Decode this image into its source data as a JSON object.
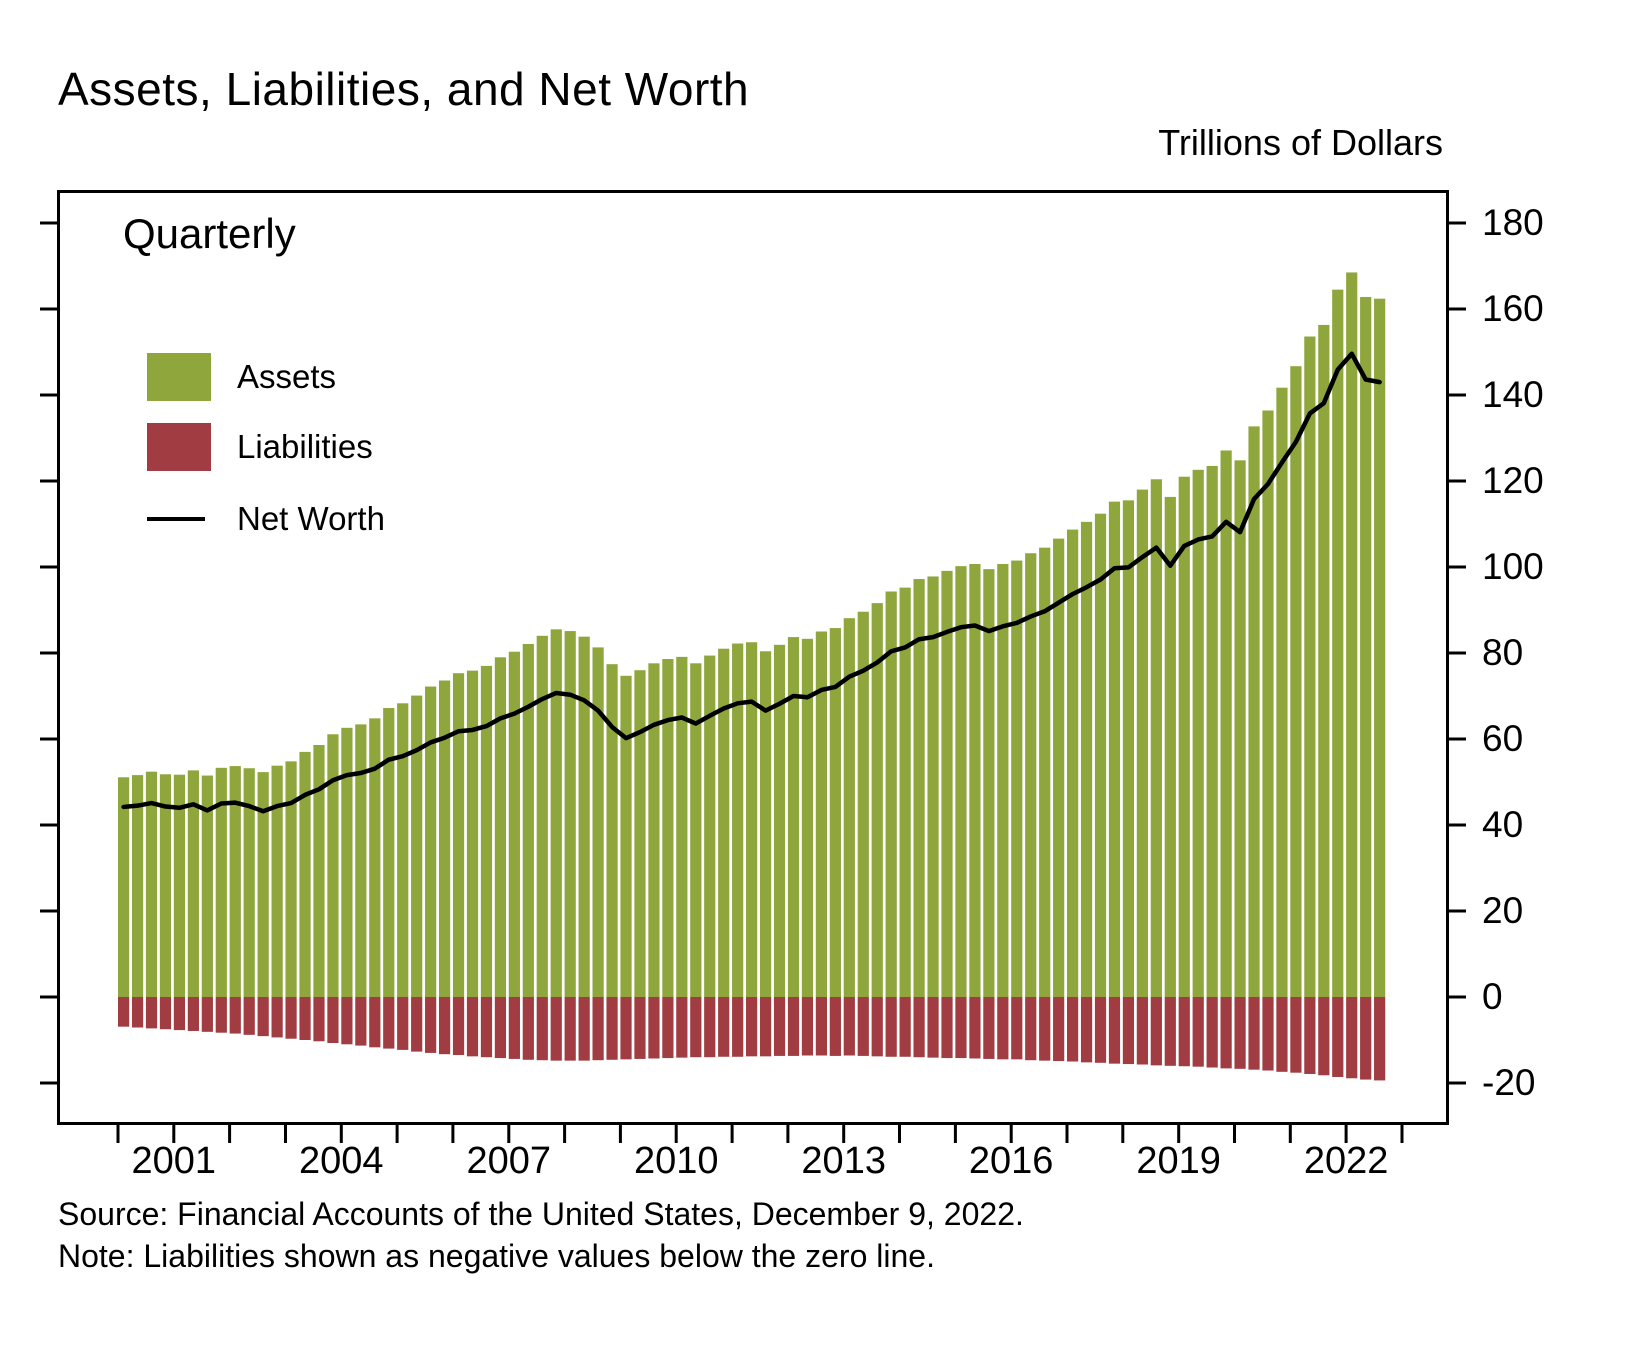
{
  "title": "Assets, Liabilities, and Net Worth",
  "units_label": "Trillions of Dollars",
  "frequency_label": "Quarterly",
  "source_note": "Source: Financial Accounts of the United States, December 9, 2022.",
  "note": "Note: Liabilities shown as negative values below the zero line.",
  "colors": {
    "assets": "#8EA63C",
    "liabilities": "#A03C42",
    "net_worth": "#000000",
    "axis": "#000000",
    "background": "#FFFFFF"
  },
  "chart_data": {
    "type": "bar",
    "title": "Assets, Liabilities, and Net Worth",
    "ylabel": "Trillions of Dollars",
    "frequency": "Quarterly",
    "grid": false,
    "legend_position": "top-left-inside",
    "ylim": [
      -30,
      188
    ],
    "y_ticks": [
      180,
      160,
      140,
      120,
      100,
      80,
      60,
      40,
      20,
      0,
      -20
    ],
    "x_tick_years": [
      2001,
      2004,
      2007,
      2010,
      2013,
      2016,
      2019,
      2022
    ],
    "start_year": 2000,
    "end_boundary_year": 2023,
    "quarters": [
      "2000Q1",
      "2000Q2",
      "2000Q3",
      "2000Q4",
      "2001Q1",
      "2001Q2",
      "2001Q3",
      "2001Q4",
      "2002Q1",
      "2002Q2",
      "2002Q3",
      "2002Q4",
      "2003Q1",
      "2003Q2",
      "2003Q3",
      "2003Q4",
      "2004Q1",
      "2004Q2",
      "2004Q3",
      "2004Q4",
      "2005Q1",
      "2005Q2",
      "2005Q3",
      "2005Q4",
      "2006Q1",
      "2006Q2",
      "2006Q3",
      "2006Q4",
      "2007Q1",
      "2007Q2",
      "2007Q3",
      "2007Q4",
      "2008Q1",
      "2008Q2",
      "2008Q3",
      "2008Q4",
      "2009Q1",
      "2009Q2",
      "2009Q3",
      "2009Q4",
      "2010Q1",
      "2010Q2",
      "2010Q3",
      "2010Q4",
      "2011Q1",
      "2011Q2",
      "2011Q3",
      "2011Q4",
      "2012Q1",
      "2012Q2",
      "2012Q3",
      "2012Q4",
      "2013Q1",
      "2013Q2",
      "2013Q3",
      "2013Q4",
      "2014Q1",
      "2014Q2",
      "2014Q3",
      "2014Q4",
      "2015Q1",
      "2015Q2",
      "2015Q3",
      "2015Q4",
      "2016Q1",
      "2016Q2",
      "2016Q3",
      "2016Q4",
      "2017Q1",
      "2017Q2",
      "2017Q3",
      "2017Q4",
      "2018Q1",
      "2018Q2",
      "2018Q3",
      "2018Q4",
      "2019Q1",
      "2019Q2",
      "2019Q3",
      "2019Q4",
      "2020Q1",
      "2020Q2",
      "2020Q3",
      "2020Q4",
      "2021Q1",
      "2021Q2",
      "2021Q3",
      "2021Q4",
      "2022Q1",
      "2022Q2",
      "2022Q3"
    ],
    "series": [
      {
        "name": "Assets",
        "type": "bar",
        "color": "#8EA63C",
        "values": [
          51.1,
          51.6,
          52.4,
          51.8,
          51.7,
          52.7,
          51.5,
          53.3,
          53.7,
          53.2,
          52.3,
          53.8,
          54.8,
          57.0,
          58.6,
          61.1,
          62.6,
          63.4,
          64.8,
          67.2,
          68.3,
          70.1,
          72.2,
          73.6,
          75.3,
          75.9,
          77.0,
          79.0,
          80.3,
          82.1,
          84.0,
          85.5,
          85.1,
          83.8,
          81.3,
          77.4,
          74.7,
          76.0,
          77.6,
          78.6,
          79.1,
          77.6,
          79.4,
          81.0,
          82.2,
          82.5,
          80.4,
          81.9,
          83.7,
          83.3,
          85.0,
          85.8,
          88.1,
          89.6,
          91.6,
          94.3,
          95.2,
          97.2,
          97.8,
          99.1,
          100.2,
          100.7,
          99.5,
          100.7,
          101.5,
          103.2,
          104.5,
          106.6,
          108.7,
          110.5,
          112.4,
          115.2,
          115.5,
          118.0,
          120.4,
          116.3,
          121.0,
          122.6,
          123.5,
          127.1,
          124.8,
          132.7,
          136.4,
          141.7,
          146.7,
          153.6,
          156.3,
          164.5,
          168.5,
          162.8,
          162.4
        ]
      },
      {
        "name": "Liabilities",
        "type": "bar",
        "color": "#A03C42",
        "values": [
          -6.9,
          -7.1,
          -7.3,
          -7.5,
          -7.7,
          -7.9,
          -8.1,
          -8.3,
          -8.5,
          -8.8,
          -9.1,
          -9.4,
          -9.7,
          -10.0,
          -10.3,
          -10.7,
          -11.0,
          -11.3,
          -11.7,
          -12.0,
          -12.3,
          -12.7,
          -13.0,
          -13.3,
          -13.5,
          -13.8,
          -14.0,
          -14.2,
          -14.4,
          -14.6,
          -14.7,
          -14.8,
          -14.8,
          -14.8,
          -14.7,
          -14.6,
          -14.5,
          -14.4,
          -14.3,
          -14.2,
          -14.1,
          -14.0,
          -14.0,
          -13.9,
          -13.9,
          -13.8,
          -13.8,
          -13.7,
          -13.7,
          -13.6,
          -13.6,
          -13.7,
          -13.6,
          -13.7,
          -13.8,
          -13.9,
          -13.9,
          -14.0,
          -14.1,
          -14.2,
          -14.2,
          -14.3,
          -14.4,
          -14.5,
          -14.5,
          -14.7,
          -14.8,
          -14.9,
          -15.0,
          -15.2,
          -15.3,
          -15.5,
          -15.6,
          -15.7,
          -15.9,
          -16.0,
          -16.1,
          -16.2,
          -16.4,
          -16.6,
          -16.7,
          -16.9,
          -17.1,
          -17.4,
          -17.6,
          -17.9,
          -18.2,
          -18.6,
          -18.9,
          -19.2,
          -19.4
        ]
      },
      {
        "name": "Net Worth",
        "type": "line",
        "color": "#000000",
        "values": [
          44.2,
          44.5,
          45.1,
          44.3,
          44.0,
          44.8,
          43.4,
          45.0,
          45.2,
          44.4,
          43.2,
          44.4,
          45.1,
          47.0,
          48.3,
          50.4,
          51.6,
          52.1,
          53.1,
          55.2,
          56.0,
          57.4,
          59.2,
          60.3,
          61.8,
          62.1,
          63.0,
          64.8,
          65.9,
          67.5,
          69.3,
          70.7,
          70.3,
          69.0,
          66.6,
          62.8,
          60.2,
          61.6,
          63.3,
          64.4,
          65.0,
          63.6,
          65.4,
          67.1,
          68.3,
          68.7,
          66.6,
          68.2,
          70.0,
          69.7,
          71.4,
          72.1,
          74.5,
          75.9,
          77.8,
          80.4,
          81.3,
          83.2,
          83.7,
          84.9,
          86.0,
          86.4,
          85.1,
          86.2,
          87.0,
          88.5,
          89.7,
          91.7,
          93.7,
          95.3,
          97.1,
          99.7,
          99.9,
          102.3,
          104.5,
          100.3,
          104.9,
          106.4,
          107.1,
          110.5,
          108.1,
          115.8,
          119.3,
          124.3,
          129.1,
          135.7,
          138.1,
          145.9,
          149.6,
          143.6,
          143.0
        ]
      }
    ]
  }
}
